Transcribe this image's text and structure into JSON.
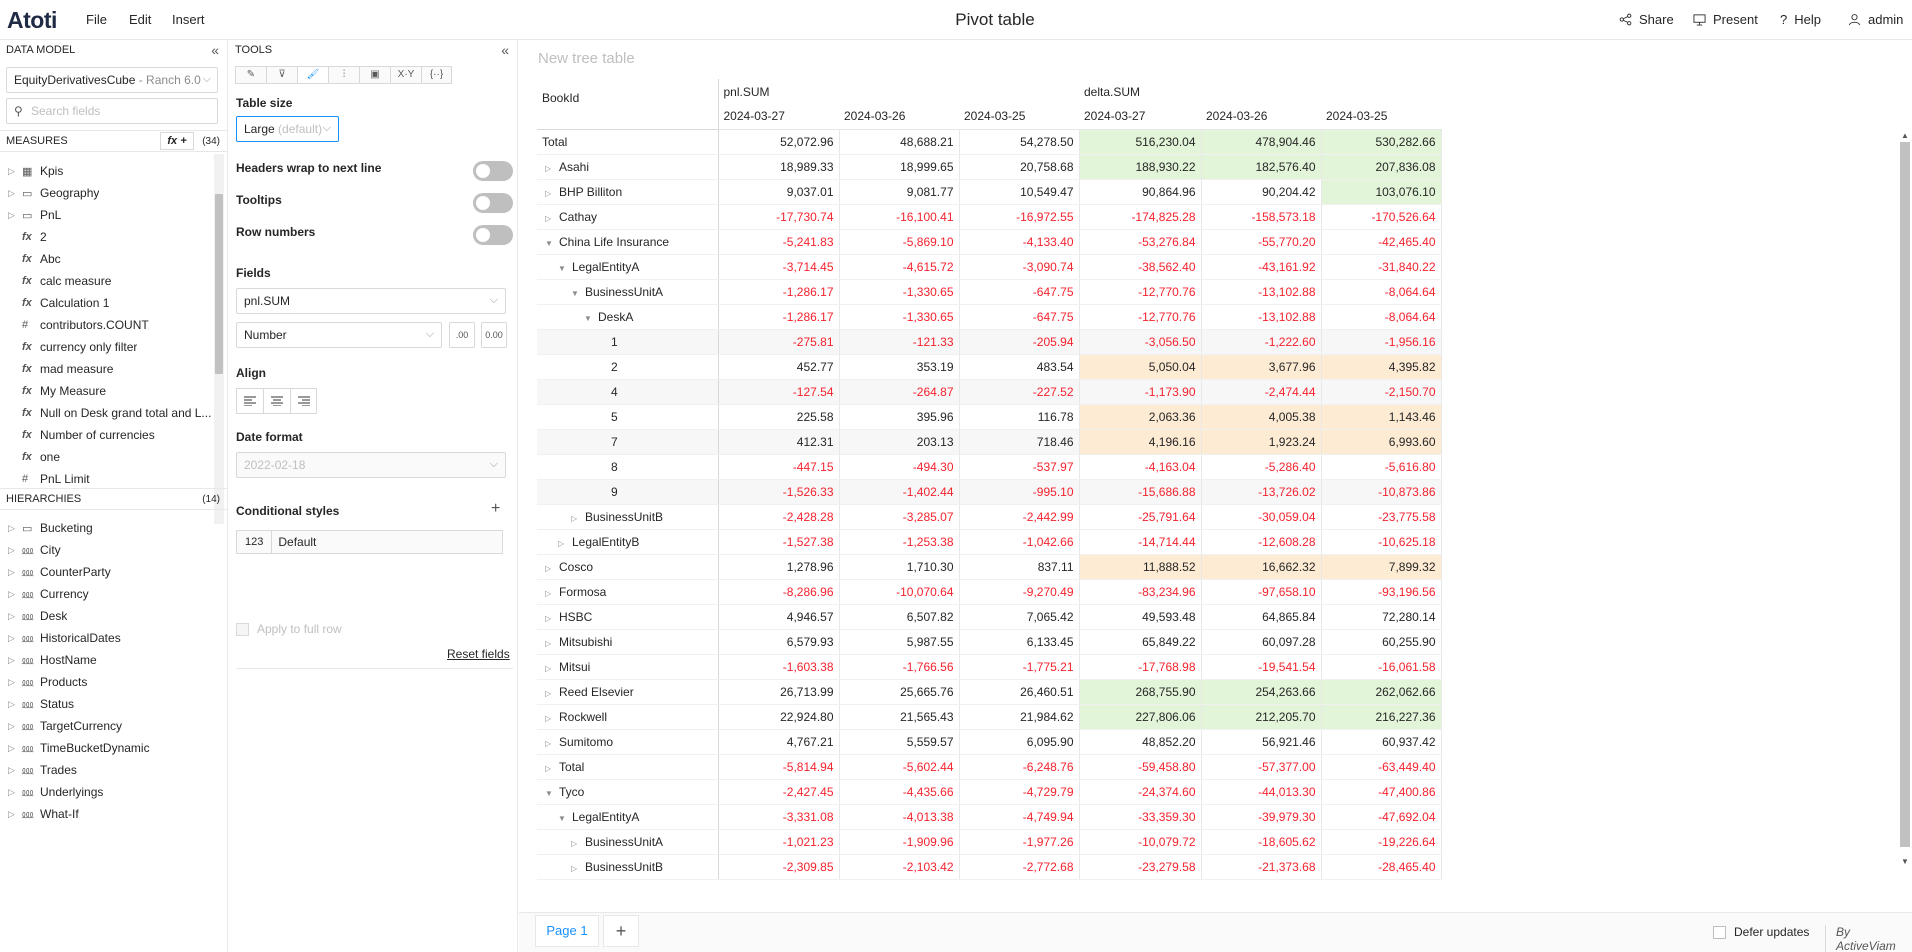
{
  "app": {
    "logo": "Atoti",
    "menu": [
      "File",
      "Edit",
      "Insert"
    ],
    "title": "Pivot table",
    "actions": [
      {
        "label": "Share",
        "icon": "share-icon"
      },
      {
        "label": "Present",
        "icon": "present-icon"
      },
      {
        "label": "Help",
        "icon": "help-icon"
      },
      {
        "label": "admin",
        "icon": "user-icon"
      }
    ]
  },
  "data_model": {
    "header": "DATA MODEL",
    "cube_name": "EquityDerivativesCube",
    "cube_suffix": " - Ranch 6.0",
    "search_placeholder": "Search fields",
    "measures_header": "MEASURES",
    "measures_count": "(34)",
    "fx_button": "fx +",
    "measures": [
      {
        "icon": "folder-icon",
        "glyph": "▦",
        "label": "Kpis",
        "caret": true
      },
      {
        "icon": "folder-icon",
        "glyph": "▭",
        "label": "Geography",
        "caret": true
      },
      {
        "icon": "folder-icon",
        "glyph": "▭",
        "label": "PnL",
        "caret": true
      },
      {
        "icon": "fx-icon",
        "glyph": "fx",
        "label": "2",
        "caret": false
      },
      {
        "icon": "fx-icon",
        "glyph": "fx",
        "label": "Abc",
        "caret": false
      },
      {
        "icon": "fx-icon",
        "glyph": "fx",
        "label": "calc measure",
        "caret": false
      },
      {
        "icon": "fx-icon",
        "glyph": "fx",
        "label": "Calculation 1",
        "caret": false
      },
      {
        "icon": "hash-icon",
        "glyph": "#",
        "label": "contributors.COUNT",
        "caret": false
      },
      {
        "icon": "fx-icon",
        "glyph": "fx",
        "label": "currency only filter",
        "caret": false
      },
      {
        "icon": "fx-icon",
        "glyph": "fx",
        "label": "mad measure",
        "caret": false
      },
      {
        "icon": "fx-icon",
        "glyph": "fx",
        "label": "My Measure",
        "caret": false
      },
      {
        "icon": "fx-icon",
        "glyph": "fx",
        "label": "Null on Desk grand total and L...",
        "caret": false
      },
      {
        "icon": "fx-icon",
        "glyph": "fx",
        "label": "Number of currencies",
        "caret": false
      },
      {
        "icon": "fx-icon",
        "glyph": "fx",
        "label": "one",
        "caret": false
      },
      {
        "icon": "hash-icon",
        "glyph": "#",
        "label": "PnL Limit",
        "caret": false
      }
    ],
    "hierarchies_header": "HIERARCHIES",
    "hierarchies_count": "(14)",
    "hierarchies": [
      {
        "icon": "folder-icon",
        "glyph": "▭",
        "label": "Bucketing"
      },
      {
        "icon": "hierarchy-icon",
        "glyph": "⅏",
        "label": "City"
      },
      {
        "icon": "hierarchy-icon",
        "glyph": "⅏",
        "label": "CounterParty"
      },
      {
        "icon": "hierarchy-icon",
        "glyph": "⅏",
        "label": "Currency"
      },
      {
        "icon": "hierarchy-icon",
        "glyph": "⅏",
        "label": "Desk"
      },
      {
        "icon": "hierarchy-icon",
        "glyph": "⅏",
        "label": "HistoricalDates"
      },
      {
        "icon": "hierarchy-icon",
        "glyph": "⅏",
        "label": "HostName"
      },
      {
        "icon": "hierarchy-icon",
        "glyph": "⅏",
        "label": "Products"
      },
      {
        "icon": "hierarchy-icon",
        "glyph": "⅏",
        "label": "Status"
      },
      {
        "icon": "hierarchy-icon",
        "glyph": "⅏",
        "label": "TargetCurrency"
      },
      {
        "icon": "hierarchy-icon",
        "glyph": "⅏",
        "label": "TimeBucketDynamic"
      },
      {
        "icon": "hierarchy-icon",
        "glyph": "⅏",
        "label": "Trades"
      },
      {
        "icon": "hierarchy-icon",
        "glyph": "⅏",
        "label": "Underlyings"
      },
      {
        "icon": "hierarchy-icon",
        "glyph": "⅏",
        "label": "What-If"
      }
    ]
  },
  "tools": {
    "header": "TOOLS",
    "table_size_label": "Table size",
    "table_size_value": "Large",
    "table_size_suffix": " (default)",
    "headers_wrap_label": "Headers wrap to next line",
    "tooltips_label": "Tooltips",
    "row_numbers_label": "Row numbers",
    "fields_label": "Fields",
    "field_value": "pnl.SUM",
    "format_value": "Number",
    "decimals_decrease": ".00",
    "decimals_increase": "0.00",
    "align_label": "Align",
    "date_format_label": "Date format",
    "date_format_value": "2022-02-18",
    "cond_styles_label": "Conditional styles",
    "cond_default_num": "123",
    "cond_default_label": "Default",
    "apply_full_row_label": "Apply to full row",
    "reset_fields_label": "Reset fields"
  },
  "pivot": {
    "widget_title": "New tree table",
    "row_header": "BookId",
    "measure_groups": [
      "pnl.SUM",
      "delta.SUM"
    ],
    "dates": [
      "2024-03-27",
      "2024-03-26",
      "2024-03-25",
      "2024-03-27",
      "2024-03-26",
      "2024-03-25"
    ],
    "rows": [
      {
        "label": "Total",
        "level": 0,
        "caret": "",
        "alt": false,
        "values": [
          "52,072.96",
          "48,688.21",
          "54,278.50",
          "516,230.04",
          "478,904.46",
          "530,282.66"
        ],
        "hl": "green"
      },
      {
        "label": "Asahi",
        "level": 1,
        "caret": "right",
        "alt": false,
        "values": [
          "18,989.33",
          "18,999.65",
          "20,758.68",
          "188,930.22",
          "182,576.40",
          "207,836.08"
        ],
        "hl": "green"
      },
      {
        "label": "BHP Billiton",
        "level": 1,
        "caret": "right",
        "alt": false,
        "values": [
          "9,037.01",
          "9,081.77",
          "10,549.47",
          "90,864.96",
          "90,204.42",
          "103,076.10"
        ],
        "hl": "green-last"
      },
      {
        "label": "Cathay",
        "level": 1,
        "caret": "right",
        "alt": false,
        "values": [
          "-17,730.74",
          "-16,100.41",
          "-16,972.55",
          "-174,825.28",
          "-158,573.18",
          "-170,526.64"
        ],
        "hl": ""
      },
      {
        "label": "China Life Insurance",
        "level": 1,
        "caret": "down",
        "alt": false,
        "values": [
          "-5,241.83",
          "-5,869.10",
          "-4,133.40",
          "-53,276.84",
          "-55,770.20",
          "-42,465.40"
        ],
        "hl": ""
      },
      {
        "label": "LegalEntityA",
        "level": 2,
        "caret": "down",
        "alt": false,
        "values": [
          "-3,714.45",
          "-4,615.72",
          "-3,090.74",
          "-38,562.40",
          "-43,161.92",
          "-31,840.22"
        ],
        "hl": ""
      },
      {
        "label": "BusinessUnitA",
        "level": 3,
        "caret": "down",
        "alt": false,
        "values": [
          "-1,286.17",
          "-1,330.65",
          "-647.75",
          "-12,770.76",
          "-13,102.88",
          "-8,064.64"
        ],
        "hl": ""
      },
      {
        "label": "DeskA",
        "level": 4,
        "caret": "down",
        "alt": false,
        "values": [
          "-1,286.17",
          "-1,330.65",
          "-647.75",
          "-12,770.76",
          "-13,102.88",
          "-8,064.64"
        ],
        "hl": ""
      },
      {
        "label": "1",
        "level": 5,
        "caret": "",
        "alt": true,
        "values": [
          "-275.81",
          "-121.33",
          "-205.94",
          "-3,056.50",
          "-1,222.60",
          "-1,956.16"
        ],
        "hl": ""
      },
      {
        "label": "2",
        "level": 5,
        "caret": "",
        "alt": false,
        "values": [
          "452.77",
          "353.19",
          "483.54",
          "5,050.04",
          "3,677.96",
          "4,395.82"
        ],
        "hl": "orange"
      },
      {
        "label": "4",
        "level": 5,
        "caret": "",
        "alt": true,
        "values": [
          "-127.54",
          "-264.87",
          "-227.52",
          "-1,173.90",
          "-2,474.44",
          "-2,150.70"
        ],
        "hl": ""
      },
      {
        "label": "5",
        "level": 5,
        "caret": "",
        "alt": false,
        "values": [
          "225.58",
          "395.96",
          "116.78",
          "2,063.36",
          "4,005.38",
          "1,143.46"
        ],
        "hl": "orange"
      },
      {
        "label": "7",
        "level": 5,
        "caret": "",
        "alt": true,
        "values": [
          "412.31",
          "203.13",
          "718.46",
          "4,196.16",
          "1,923.24",
          "6,993.60"
        ],
        "hl": "orange"
      },
      {
        "label": "8",
        "level": 5,
        "caret": "",
        "alt": false,
        "values": [
          "-447.15",
          "-494.30",
          "-537.97",
          "-4,163.04",
          "-5,286.40",
          "-5,616.80"
        ],
        "hl": ""
      },
      {
        "label": "9",
        "level": 5,
        "caret": "",
        "alt": true,
        "values": [
          "-1,526.33",
          "-1,402.44",
          "-995.10",
          "-15,686.88",
          "-13,726.02",
          "-10,873.86"
        ],
        "hl": ""
      },
      {
        "label": "BusinessUnitB",
        "level": 3,
        "caret": "right",
        "alt": false,
        "values": [
          "-2,428.28",
          "-3,285.07",
          "-2,442.99",
          "-25,791.64",
          "-30,059.04",
          "-23,775.58"
        ],
        "hl": ""
      },
      {
        "label": "LegalEntityB",
        "level": 2,
        "caret": "right",
        "alt": false,
        "values": [
          "-1,527.38",
          "-1,253.38",
          "-1,042.66",
          "-14,714.44",
          "-12,608.28",
          "-10,625.18"
        ],
        "hl": ""
      },
      {
        "label": "Cosco",
        "level": 1,
        "caret": "right",
        "alt": false,
        "values": [
          "1,278.96",
          "1,710.30",
          "837.11",
          "11,888.52",
          "16,662.32",
          "7,899.32"
        ],
        "hl": "orange"
      },
      {
        "label": "Formosa",
        "level": 1,
        "caret": "right",
        "alt": false,
        "values": [
          "-8,286.96",
          "-10,070.64",
          "-9,270.49",
          "-83,234.96",
          "-97,658.10",
          "-93,196.56"
        ],
        "hl": ""
      },
      {
        "label": "HSBC",
        "level": 1,
        "caret": "right",
        "alt": false,
        "values": [
          "4,946.57",
          "6,507.82",
          "7,065.42",
          "49,593.48",
          "64,865.84",
          "72,280.14"
        ],
        "hl": ""
      },
      {
        "label": "Mitsubishi",
        "level": 1,
        "caret": "right",
        "alt": false,
        "values": [
          "6,579.93",
          "5,987.55",
          "6,133.45",
          "65,849.22",
          "60,097.28",
          "60,255.90"
        ],
        "hl": ""
      },
      {
        "label": "Mitsui",
        "level": 1,
        "caret": "right",
        "alt": false,
        "values": [
          "-1,603.38",
          "-1,766.56",
          "-1,775.21",
          "-17,768.98",
          "-19,541.54",
          "-16,061.58"
        ],
        "hl": ""
      },
      {
        "label": "Reed Elsevier",
        "level": 1,
        "caret": "right",
        "alt": false,
        "values": [
          "26,713.99",
          "25,665.76",
          "26,460.51",
          "268,755.90",
          "254,263.66",
          "262,062.66"
        ],
        "hl": "green"
      },
      {
        "label": "Rockwell",
        "level": 1,
        "caret": "right",
        "alt": false,
        "values": [
          "22,924.80",
          "21,565.43",
          "21,984.62",
          "227,806.06",
          "212,205.70",
          "216,227.36"
        ],
        "hl": "green"
      },
      {
        "label": "Sumitomo",
        "level": 1,
        "caret": "right",
        "alt": false,
        "values": [
          "4,767.21",
          "5,559.57",
          "6,095.90",
          "48,852.20",
          "56,921.46",
          "60,937.42"
        ],
        "hl": ""
      },
      {
        "label": "Total",
        "level": 1,
        "caret": "right",
        "alt": false,
        "values": [
          "-5,814.94",
          "-5,602.44",
          "-6,248.76",
          "-59,458.80",
          "-57,377.00",
          "-63,449.40"
        ],
        "hl": ""
      },
      {
        "label": "Tyco",
        "level": 1,
        "caret": "down",
        "alt": false,
        "values": [
          "-2,427.45",
          "-4,435.66",
          "-4,729.79",
          "-24,374.60",
          "-44,013.30",
          "-47,400.86"
        ],
        "hl": ""
      },
      {
        "label": "LegalEntityA",
        "level": 2,
        "caret": "down",
        "alt": false,
        "values": [
          "-3,331.08",
          "-4,013.38",
          "-4,749.94",
          "-33,359.30",
          "-39,979.30",
          "-47,692.04"
        ],
        "hl": ""
      },
      {
        "label": "BusinessUnitA",
        "level": 3,
        "caret": "right",
        "alt": false,
        "values": [
          "-1,021.23",
          "-1,909.96",
          "-1,977.26",
          "-10,079.72",
          "-18,605.62",
          "-19,226.64"
        ],
        "hl": ""
      },
      {
        "label": "BusinessUnitB",
        "level": 3,
        "caret": "right",
        "alt": false,
        "values": [
          "-2,309.85",
          "-2,103.42",
          "-2,772.68",
          "-23,279.58",
          "-21,373.68",
          "-28,465.40"
        ],
        "hl": ""
      }
    ]
  },
  "footer": {
    "page_tab": "Page 1",
    "add_page": "+",
    "defer_label": "Defer updates",
    "brand": "By ActiveViam"
  },
  "colors": {
    "accent": "#1890ff",
    "negative": "#f5222d",
    "highlight_green": "#e3f5d9",
    "highlight_orange": "#fdebd3"
  }
}
